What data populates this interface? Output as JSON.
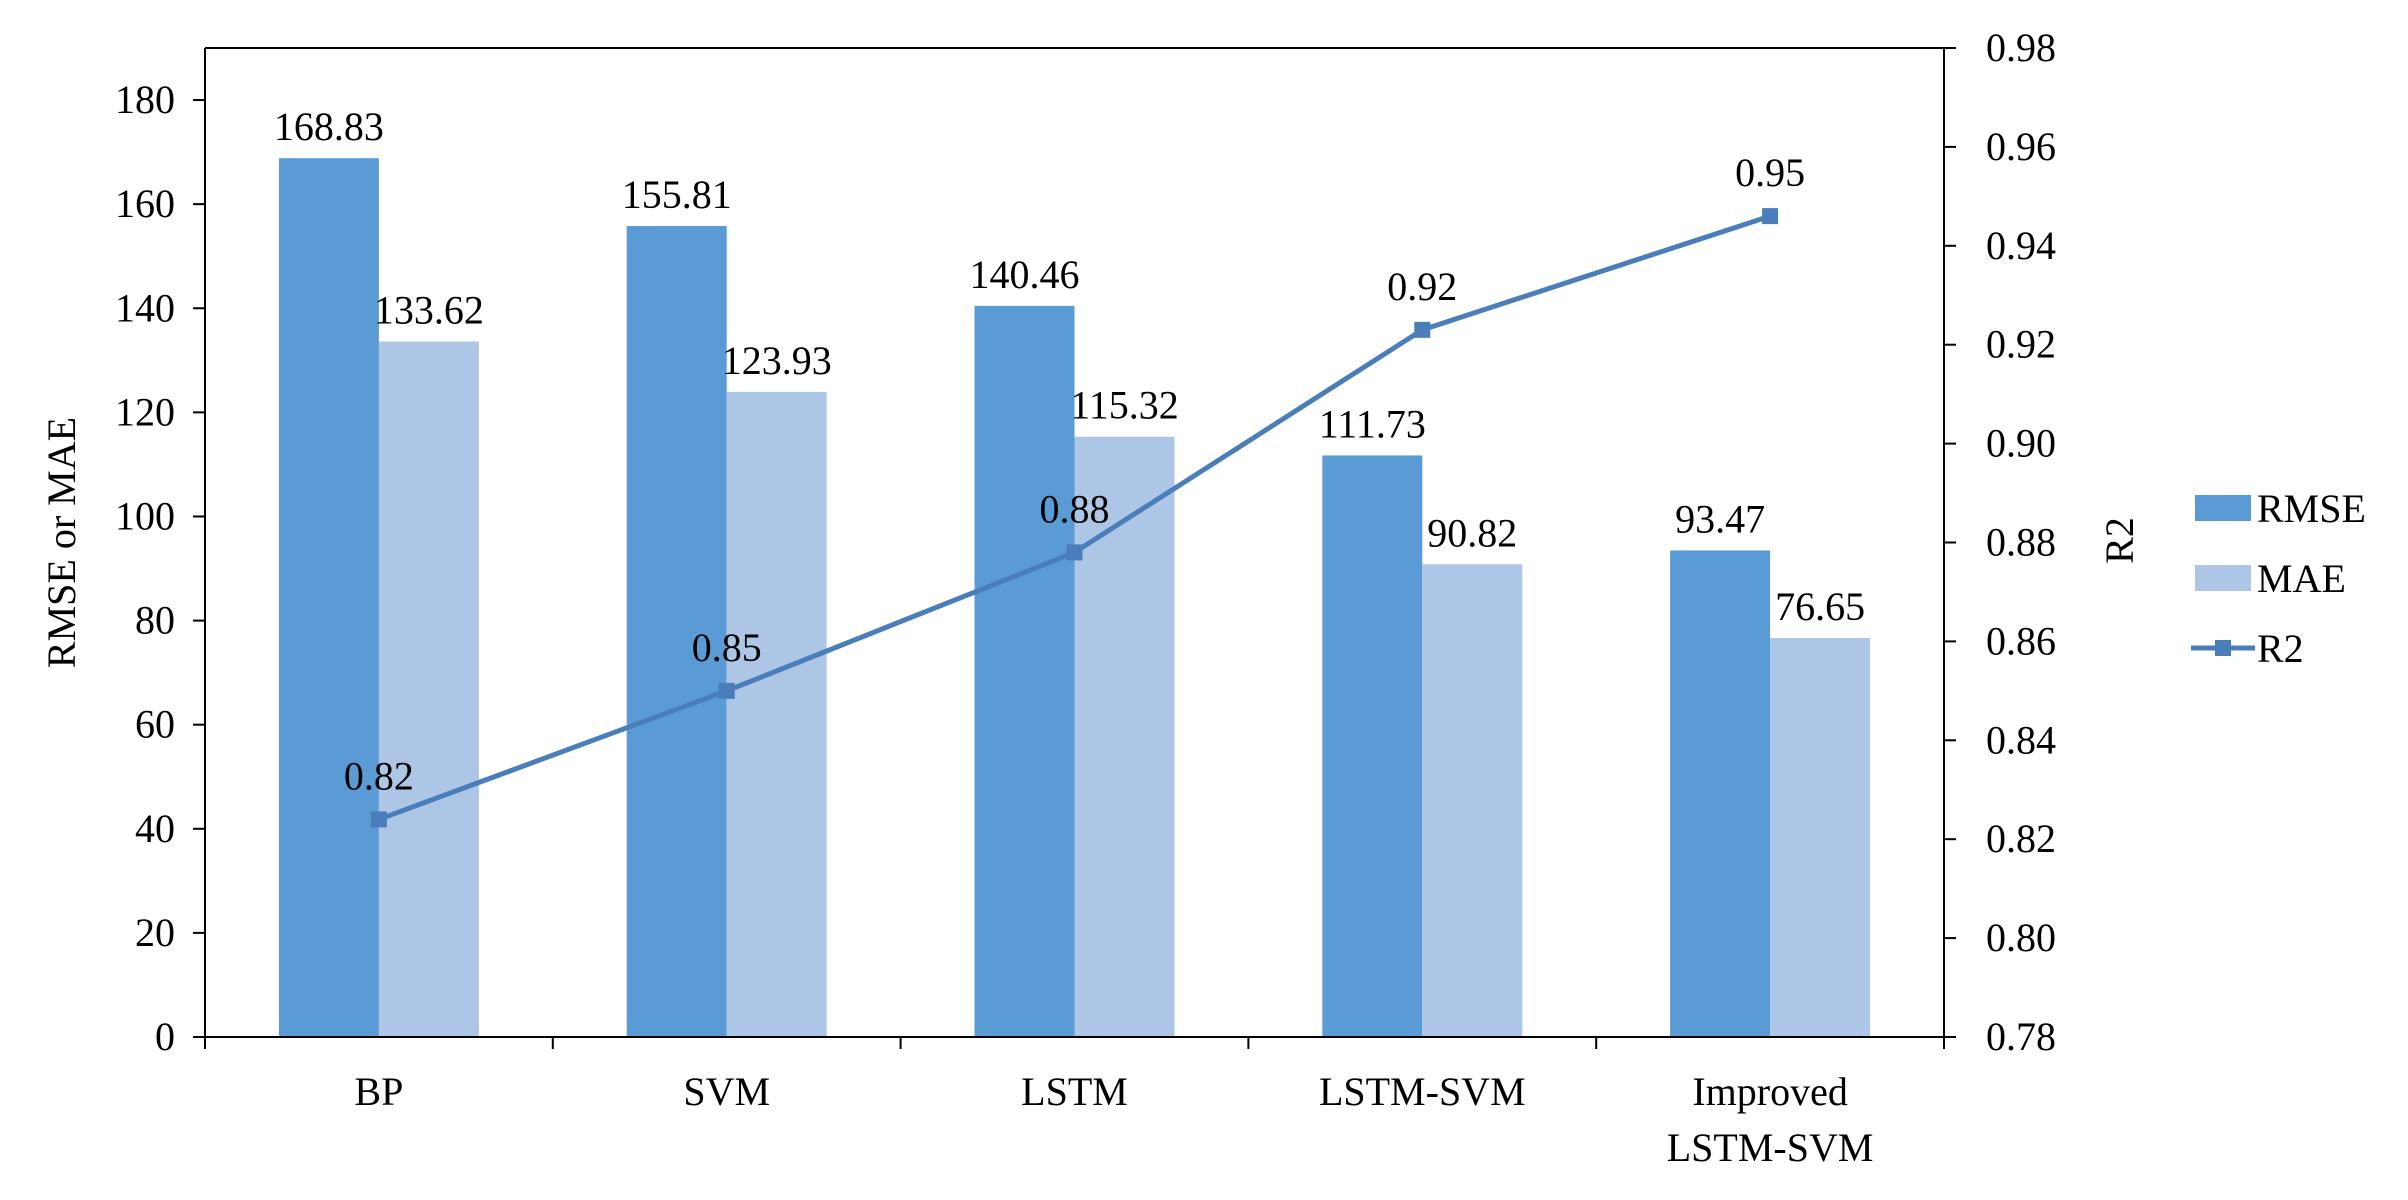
{
  "chart_data": {
    "type": "bar",
    "categories": [
      "BP",
      "SVM",
      "LSTM",
      "LSTM-SVM",
      "Improved\nLSTM-SVM"
    ],
    "series": [
      {
        "name": "RMSE",
        "type": "bar",
        "axis": "left",
        "color": "#5B9BD5",
        "values": [
          168.83,
          155.81,
          140.46,
          111.73,
          93.47
        ],
        "labels": [
          "168.83",
          "155.81",
          "140.46",
          "111.73",
          "93.47"
        ]
      },
      {
        "name": "MAE",
        "type": "bar",
        "axis": "left",
        "color": "#ADC6E6",
        "values": [
          133.62,
          123.93,
          115.32,
          90.82,
          76.65
        ],
        "labels": [
          "133.62",
          "123.93",
          "115.32",
          "90.82",
          "76.65"
        ]
      },
      {
        "name": "R2",
        "type": "line",
        "axis": "right",
        "color": "#4A7EBB",
        "marker": "square",
        "values": [
          0.824,
          0.85,
          0.878,
          0.923,
          0.946
        ],
        "labels": [
          "0.82",
          "0.85",
          "0.88",
          "0.92",
          "0.95"
        ]
      }
    ],
    "y_left": {
      "label": "RMSE or MAE",
      "min": 0,
      "max": 190,
      "ticks": [
        "0",
        "20",
        "40",
        "60",
        "80",
        "100",
        "120",
        "140",
        "160",
        "180"
      ]
    },
    "y_right": {
      "label": "R2",
      "min": 0.78,
      "max": 0.98,
      "ticks": [
        "0.78",
        "0.80",
        "0.82",
        "0.84",
        "0.86",
        "0.88",
        "0.90",
        "0.92",
        "0.94",
        "0.96",
        "0.98"
      ]
    },
    "legend": {
      "position": "right",
      "items": [
        "RMSE",
        "MAE",
        "R2"
      ]
    },
    "grid": false
  }
}
